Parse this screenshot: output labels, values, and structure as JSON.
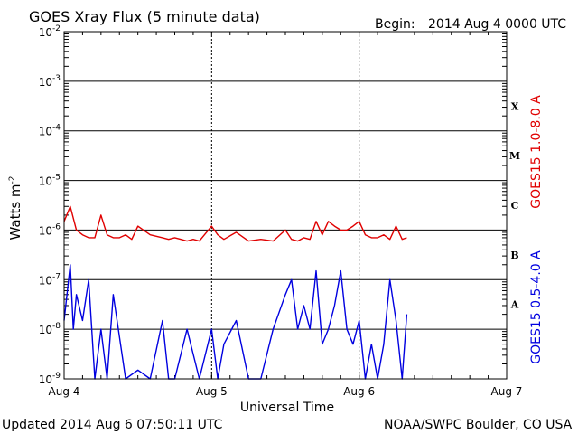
{
  "header": {
    "title": "GOES Xray Flux (5 minute data)",
    "begin_label": "Begin:",
    "begin_value": "2014 Aug 4 0000 UTC"
  },
  "footer": {
    "updated": "Updated 2014 Aug  6 07:50:11 UTC",
    "credit": "NOAA/SWPC Boulder, CO USA"
  },
  "chart_data": {
    "type": "line",
    "title": "GOES Xray Flux (5 minute data)",
    "xlabel": "Universal Time",
    "ylabel_base": "Watts m",
    "ylabel_exp": "-2",
    "yscale": "log",
    "ylim": [
      1e-09,
      0.01
    ],
    "xlim": [
      "2014-08-04 00:00",
      "2014-08-07 00:00"
    ],
    "x_tick_labels": [
      "Aug 4",
      "Aug 5",
      "Aug 6",
      "Aug 7"
    ],
    "y_tick_labels": [
      {
        "base": "10",
        "exp": "-2"
      },
      {
        "base": "10",
        "exp": "-3"
      },
      {
        "base": "10",
        "exp": "-4"
      },
      {
        "base": "10",
        "exp": "-5"
      },
      {
        "base": "10",
        "exp": "-6"
      },
      {
        "base": "10",
        "exp": "-7"
      },
      {
        "base": "10",
        "exp": "-8"
      },
      {
        "base": "10",
        "exp": "-9"
      }
    ],
    "flare_classes": [
      "X",
      "M",
      "C",
      "B",
      "A"
    ],
    "grid": true,
    "series": [
      {
        "name": "GOES15 1.0-8.0 A",
        "color": "#e00000",
        "x": [
          "2014-08-04 00:00",
          "2014-08-04 01:00",
          "2014-08-04 02:00",
          "2014-08-04 03:00",
          "2014-08-04 04:00",
          "2014-08-04 05:00",
          "2014-08-04 06:00",
          "2014-08-04 07:00",
          "2014-08-04 08:00",
          "2014-08-04 09:00",
          "2014-08-04 10:00",
          "2014-08-04 11:00",
          "2014-08-04 12:00",
          "2014-08-04 14:00",
          "2014-08-04 16:00",
          "2014-08-04 17:00",
          "2014-08-04 18:00",
          "2014-08-04 19:00",
          "2014-08-04 20:00",
          "2014-08-04 21:00",
          "2014-08-04 22:00",
          "2014-08-05 00:00",
          "2014-08-05 01:00",
          "2014-08-05 02:00",
          "2014-08-05 04:00",
          "2014-08-05 06:00",
          "2014-08-05 08:00",
          "2014-08-05 10:00",
          "2014-08-05 12:00",
          "2014-08-05 13:00",
          "2014-08-05 14:00",
          "2014-08-05 15:00",
          "2014-08-05 16:00",
          "2014-08-05 17:00",
          "2014-08-05 18:00",
          "2014-08-05 19:00",
          "2014-08-05 20:00",
          "2014-08-05 21:00",
          "2014-08-05 22:00",
          "2014-08-05 23:00",
          "2014-08-06 00:00",
          "2014-08-06 01:00",
          "2014-08-06 02:00",
          "2014-08-06 03:00",
          "2014-08-06 04:00",
          "2014-08-06 05:00",
          "2014-08-06 06:00",
          "2014-08-06 07:00",
          "2014-08-06 07:45"
        ],
        "y": [
          1.5e-06,
          3e-06,
          1e-06,
          8e-07,
          7e-07,
          7e-07,
          2e-06,
          8e-07,
          7e-07,
          7e-07,
          8e-07,
          6.5e-07,
          1.2e-06,
          8e-07,
          7e-07,
          6.5e-07,
          7e-07,
          6.5e-07,
          6e-07,
          6.5e-07,
          6e-07,
          1.2e-06,
          8e-07,
          6.5e-07,
          9e-07,
          6e-07,
          6.5e-07,
          6e-07,
          1e-06,
          6.5e-07,
          6e-07,
          7e-07,
          6.5e-07,
          1.5e-06,
          8e-07,
          1.5e-06,
          1.2e-06,
          1e-06,
          1e-06,
          1.2e-06,
          1.5e-06,
          8e-07,
          7e-07,
          7e-07,
          8e-07,
          6.5e-07,
          1.2e-06,
          6.5e-07,
          7e-07
        ]
      },
      {
        "name": "GOES15 0.5-4.0 A",
        "color": "#0000e0",
        "x": [
          "2014-08-04 00:00",
          "2014-08-04 01:00",
          "2014-08-04 01:30",
          "2014-08-04 02:00",
          "2014-08-04 03:00",
          "2014-08-04 04:00",
          "2014-08-04 05:00",
          "2014-08-04 06:00",
          "2014-08-04 07:00",
          "2014-08-04 08:00",
          "2014-08-04 10:00",
          "2014-08-04 12:00",
          "2014-08-04 14:00",
          "2014-08-04 16:00",
          "2014-08-04 17:00",
          "2014-08-04 18:00",
          "2014-08-04 20:00",
          "2014-08-04 22:00",
          "2014-08-05 00:00",
          "2014-08-05 01:00",
          "2014-08-05 02:00",
          "2014-08-05 04:00",
          "2014-08-05 06:00",
          "2014-08-05 08:00",
          "2014-08-05 10:00",
          "2014-08-05 12:00",
          "2014-08-05 13:00",
          "2014-08-05 14:00",
          "2014-08-05 15:00",
          "2014-08-05 16:00",
          "2014-08-05 17:00",
          "2014-08-05 18:00",
          "2014-08-05 19:00",
          "2014-08-05 20:00",
          "2014-08-05 21:00",
          "2014-08-05 22:00",
          "2014-08-05 23:00",
          "2014-08-06 00:00",
          "2014-08-06 01:00",
          "2014-08-06 02:00",
          "2014-08-06 03:00",
          "2014-08-06 04:00",
          "2014-08-06 05:00",
          "2014-08-06 06:00",
          "2014-08-06 07:00",
          "2014-08-06 07:45"
        ],
        "y": [
          1.5e-08,
          2e-07,
          1e-08,
          5e-08,
          1.5e-08,
          1e-07,
          1e-09,
          1e-08,
          1e-09,
          5e-08,
          1e-09,
          1.5e-09,
          1e-09,
          1.5e-08,
          1e-09,
          1e-09,
          1e-08,
          1e-09,
          1e-08,
          1e-09,
          5e-09,
          1.5e-08,
          1e-09,
          1e-09,
          1e-08,
          5e-08,
          1e-07,
          1e-08,
          3e-08,
          1e-08,
          1.5e-07,
          5e-09,
          1e-08,
          3e-08,
          1.5e-07,
          1e-08,
          5e-09,
          1.5e-08,
          1e-09,
          5e-09,
          1e-09,
          5e-09,
          1e-07,
          1.5e-08,
          1e-09,
          2e-08
        ]
      }
    ]
  }
}
